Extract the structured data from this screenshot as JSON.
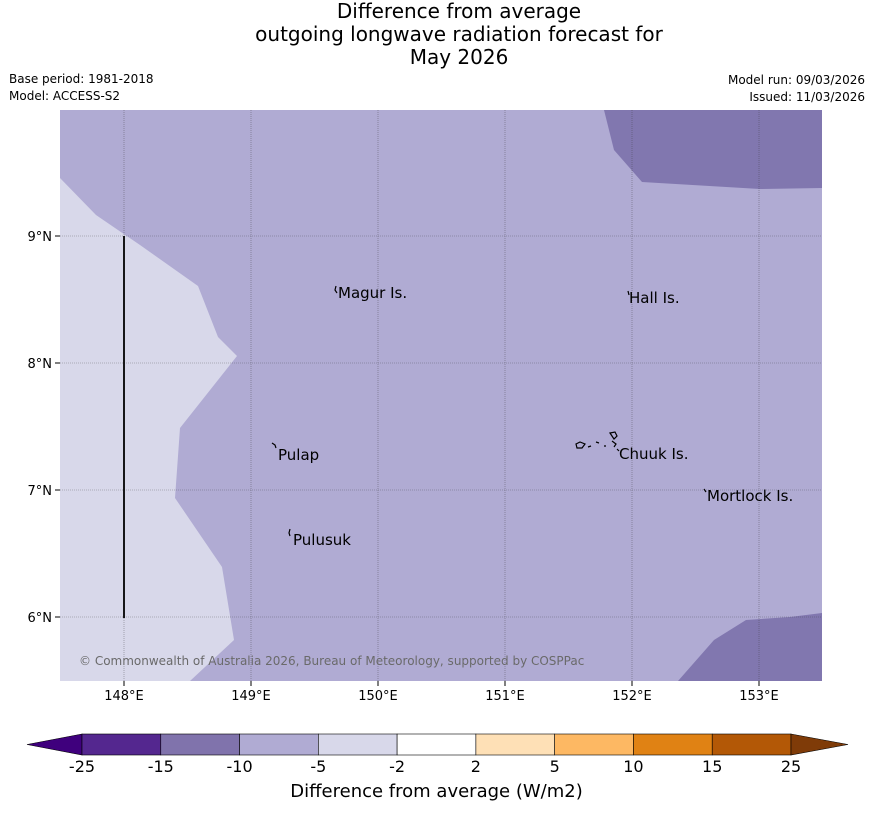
{
  "title": {
    "line1": "Difference from average",
    "line2": "outgoing longwave radiation forecast for",
    "line3": "May 2026"
  },
  "meta": {
    "base_period": "Base period: 1981-2018",
    "model": "Model: ACCESS-S2",
    "model_run": "Model run: 09/03/2026",
    "issued": "Issued: 11/03/2026"
  },
  "map": {
    "lat_labels": [
      "9°N",
      "8°N",
      "7°N",
      "6°N"
    ],
    "lon_labels": [
      "148°E",
      "149°E",
      "150°E",
      "151°E",
      "152°E",
      "153°E"
    ],
    "places": [
      "Magur Is.",
      "Hall Is.",
      "Pulap",
      "Chuuk Is.",
      "Mortlock Is.",
      "Pulusuk"
    ],
    "copyright": "© Commonwealth of Australia 2026, Bureau of Meteorology, supported by COSPPac",
    "fill_colors": {
      "light": "#d8d8ea",
      "medium": "#b0abd3",
      "dark": "#8177af"
    }
  },
  "colorbar": {
    "ticks": [
      "-25",
      "-15",
      "-10",
      "-5",
      "-2",
      "2",
      "5",
      "10",
      "15",
      "25"
    ],
    "colors": [
      "#3f007d",
      "#54278f",
      "#8073ac",
      "#b0abd3",
      "#d8d8ea",
      "#ffffff",
      "#fee0b6",
      "#fdb863",
      "#e08214",
      "#b35806",
      "#7f3b08"
    ],
    "label": "Difference from average (W/m2)"
  }
}
